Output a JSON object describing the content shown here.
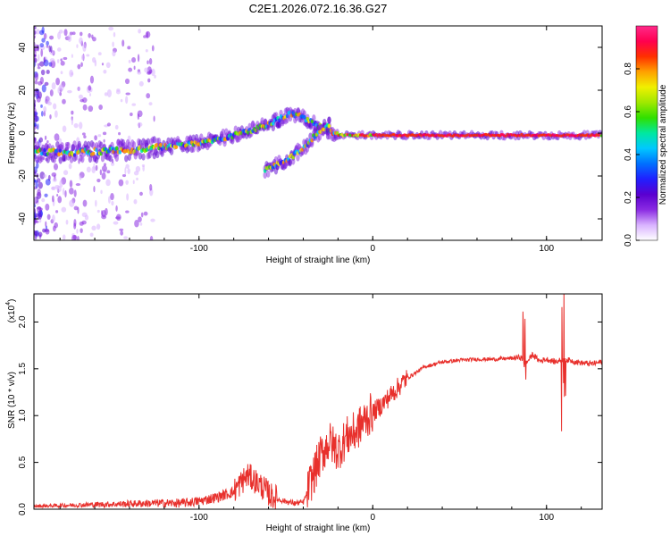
{
  "title": "C2E1.2026.072.16.36.G27",
  "colors": {
    "snr_line": "#e8302c",
    "frame": "#000000",
    "colorbar": [
      "#ffffff",
      "#d9b3ff",
      "#8a2be2",
      "#5a00d0",
      "#2020ff",
      "#0070ff",
      "#00c8ff",
      "#00e8a0",
      "#30e000",
      "#a0e800",
      "#f0f000",
      "#ffa000",
      "#ff3000",
      "#ff0050",
      "#ff2a8a"
    ]
  },
  "chart_data": [
    {
      "type": "heatmap",
      "name": "spectrogram",
      "title": "C2E1.2026.072.16.36.G27",
      "xlabel": "Height of straight line (km)",
      "ylabel": "Frequency (Hz)",
      "xlim": [
        -195,
        132
      ],
      "ylim": [
        -50,
        50
      ],
      "xticks": [
        {
          "v": -100,
          "label": "-100"
        },
        {
          "v": 0,
          "label": "0"
        },
        {
          "v": 100,
          "label": "100"
        }
      ],
      "yticks": [
        {
          "v": -40,
          "label": "-40"
        },
        {
          "v": -20,
          "label": "-20"
        },
        {
          "v": 0,
          "label": "0"
        },
        {
          "v": 20,
          "label": "20"
        },
        {
          "v": 40,
          "label": "40"
        }
      ],
      "colorbar": {
        "label": "Normalized spectral amplitude",
        "range": [
          0,
          1
        ],
        "ticks": [
          {
            "v": 0.0,
            "label": "0.0"
          },
          {
            "v": 0.2,
            "label": "0.2"
          },
          {
            "v": 0.4,
            "label": "0.4"
          },
          {
            "v": 0.6,
            "label": "0.6"
          },
          {
            "v": 0.8,
            "label": "0.8"
          }
        ]
      },
      "tracks": [
        {
          "name": "main-tone",
          "points": [
            [
              -195,
              -9
            ],
            [
              -170,
              -9
            ],
            [
              -140,
              -8
            ],
            [
              -115,
              -6
            ],
            [
              -95,
              -4
            ],
            [
              -75,
              0
            ],
            [
              -60,
              4
            ],
            [
              -48,
              9
            ],
            [
              -42,
              8
            ],
            [
              -35,
              5
            ],
            [
              -28,
              2
            ],
            [
              -20,
              -1
            ],
            [
              0,
              -1
            ],
            [
              40,
              -1
            ],
            [
              80,
              -1
            ],
            [
              100,
              -1
            ],
            [
              132,
              -1
            ]
          ]
        },
        {
          "name": "secondary-tone",
          "points": [
            [
              -62,
              -17
            ],
            [
              -50,
              -13
            ],
            [
              -40,
              -7
            ],
            [
              -33,
              -1
            ],
            [
              -25,
              4
            ]
          ]
        }
      ]
    },
    {
      "type": "line",
      "name": "snr",
      "xlabel": "Height of straight line (km)",
      "ylabel": "SNR (10 * v/v)",
      "yscale_label": "(x10",
      "yscale_exp": "4",
      "xlim": [
        -195,
        132
      ],
      "ylim": [
        0,
        2.3
      ],
      "xticks": [
        {
          "v": -100,
          "label": "-100"
        },
        {
          "v": 0,
          "label": "0"
        },
        {
          "v": 100,
          "label": "100"
        }
      ],
      "yticks": [
        {
          "v": 0.0,
          "label": "0.0"
        },
        {
          "v": 0.5,
          "label": "0.5"
        },
        {
          "v": 1.0,
          "label": "1.0"
        },
        {
          "v": 1.5,
          "label": "1.5"
        },
        {
          "v": 2.0,
          "label": "2.0"
        }
      ],
      "series": [
        {
          "name": "snr",
          "x": [
            -195,
            -175,
            -150,
            -125,
            -110,
            -100,
            -90,
            -80,
            -72,
            -65,
            -58,
            -50,
            -45,
            -40,
            -35,
            -30,
            -25,
            -20,
            -15,
            -10,
            -5,
            0,
            5,
            10,
            20,
            30,
            40,
            50,
            60,
            70,
            80,
            85,
            88,
            92,
            96,
            100,
            105,
            110,
            115,
            120,
            126,
            132
          ],
          "y": [
            0.03,
            0.04,
            0.05,
            0.06,
            0.06,
            0.08,
            0.12,
            0.18,
            0.35,
            0.25,
            0.12,
            0.08,
            0.06,
            0.07,
            0.3,
            0.55,
            0.7,
            0.6,
            0.75,
            0.8,
            0.92,
            1.02,
            1.1,
            1.2,
            1.4,
            1.52,
            1.57,
            1.59,
            1.6,
            1.6,
            1.61,
            1.62,
            1.55,
            1.65,
            1.58,
            1.6,
            1.57,
            1.6,
            1.58,
            1.56,
            1.55,
            1.57
          ]
        }
      ]
    }
  ]
}
